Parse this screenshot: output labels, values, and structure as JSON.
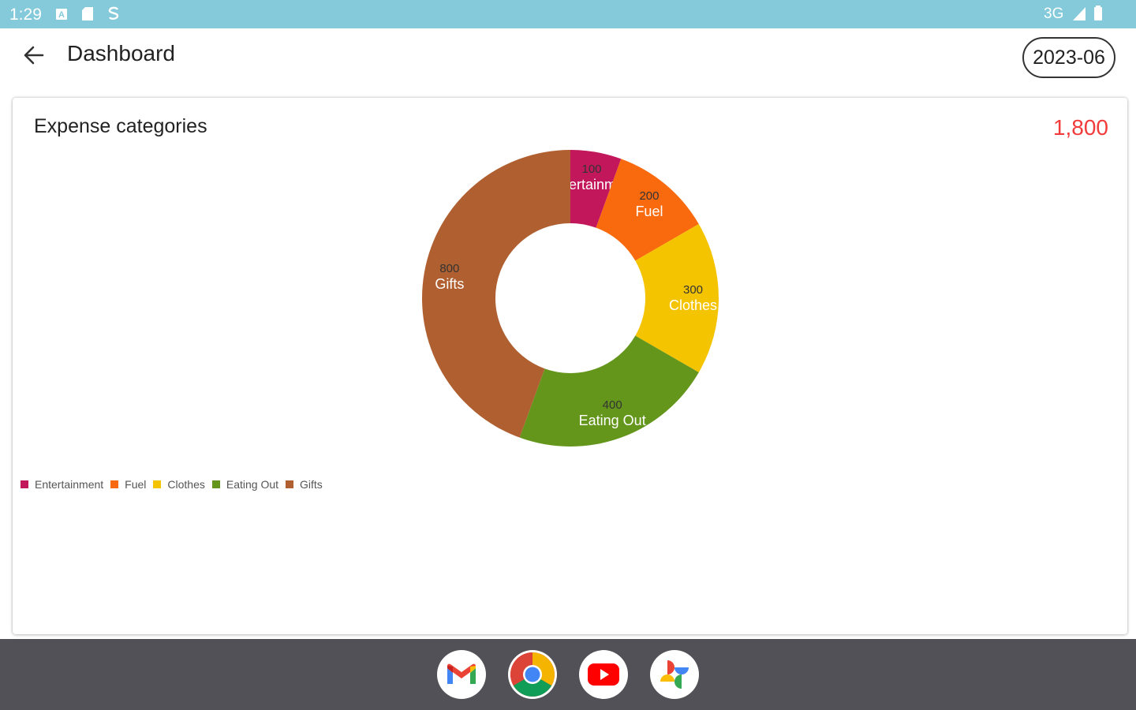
{
  "status_bar": {
    "time": "1:29",
    "network": "3G",
    "icons": [
      "notification-a-icon",
      "sd-card-icon",
      "sync-icon",
      "signal-icon",
      "battery-icon"
    ]
  },
  "app_bar": {
    "title": "Dashboard",
    "month": "2023-06",
    "back_icon": "arrow-left-icon"
  },
  "card": {
    "title": "Expense categories",
    "total": "1,800",
    "total_color": "#f23b3b"
  },
  "chart_data": {
    "type": "pie",
    "donut": true,
    "categories": [
      "Entertainment",
      "Fuel",
      "Clothes",
      "Eating Out",
      "Gifts"
    ],
    "values": [
      100,
      200,
      300,
      400,
      800
    ],
    "colors": [
      "#c2185b",
      "#f96a0e",
      "#f5c400",
      "#65961c",
      "#b06030"
    ],
    "legend_position": "bottom-left"
  },
  "dock": {
    "apps": [
      "gmail-icon",
      "chrome-icon",
      "youtube-icon",
      "photos-icon"
    ]
  }
}
